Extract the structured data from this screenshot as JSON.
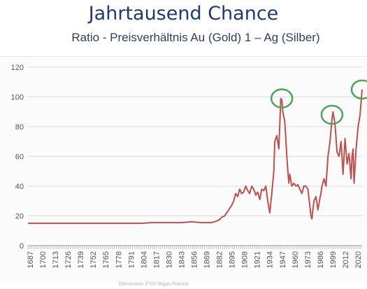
{
  "header": {
    "title": "Jahrtausend Chance",
    "subtitle": "Ratio - Preisverhältnis  Au (Gold) 1 – Ag (Silber)"
  },
  "footer": {
    "text": "Elementum 2°©© Bojan Pravica"
  },
  "chart_data": {
    "type": "line",
    "title": "Jahrtausend Chance",
    "subtitle": "Ratio - Preisverhältnis  Au (Gold) 1 – Ag (Silber)",
    "xlabel": "",
    "ylabel": "",
    "xlim": [
      1687,
      2020
    ],
    "ylim": [
      0,
      120
    ],
    "yticks": [
      0,
      20,
      40,
      60,
      80,
      100,
      120
    ],
    "xtick_labels": [
      "1687",
      "1700",
      "1713",
      "1726",
      "1739",
      "1752",
      "1765",
      "1778",
      "1791",
      "1804",
      "1817",
      "1830",
      "1843",
      "1856",
      "1869",
      "1882",
      "1895",
      "1908",
      "1921",
      "1934",
      "1947",
      "1960",
      "1973",
      "1986",
      "1999",
      "2012",
      "2020"
    ],
    "grid": true,
    "line_color": "#c0504d",
    "highlight_color": "#4aa55a",
    "series": [
      {
        "x": [
          1687,
          1695,
          1700,
          1710,
          1720,
          1730,
          1740,
          1750,
          1760,
          1770,
          1780,
          1790,
          1800,
          1810,
          1820,
          1830,
          1840,
          1850,
          1860,
          1870,
          1875,
          1878,
          1880,
          1883,
          1885,
          1887,
          1890,
          1892,
          1894,
          1896,
          1898,
          1900,
          1902,
          1904,
          1906,
          1908,
          1910,
          1912,
          1914,
          1916,
          1918,
          1920,
          1922,
          1924,
          1926,
          1928,
          1930,
          1932,
          1933,
          1935,
          1937,
          1939,
          1940,
          1941,
          1943,
          1945,
          1946,
          1947,
          1948,
          1950,
          1952,
          1954,
          1956,
          1958,
          1960,
          1962,
          1964,
          1966,
          1968,
          1969,
          1970,
          1972,
          1974,
          1976,
          1978,
          1979,
          1980,
          1982,
          1984,
          1986,
          1988,
          1990,
          1991,
          1993,
          1995,
          1997,
          1999,
          2001,
          2003,
          2005,
          2007,
          2009,
          2010,
          2011,
          2012,
          2014,
          2016,
          2018,
          2020
        ],
        "y": [
          15,
          15,
          15,
          15,
          15,
          15,
          15,
          15,
          15,
          15,
          15,
          15,
          15,
          15.5,
          15.5,
          15.5,
          15.5,
          16,
          15.5,
          15.5,
          16.5,
          17.5,
          19,
          20,
          22,
          24,
          27,
          30,
          35,
          33,
          38,
          35,
          36,
          40,
          37,
          35,
          40,
          38,
          34,
          36,
          31,
          38,
          37,
          40,
          30,
          22,
          35,
          50,
          70,
          74,
          65,
          99,
          98,
          90,
          83,
          60,
          50,
          42,
          48,
          40,
          42,
          40,
          41,
          38,
          35,
          40,
          40,
          38,
          26,
          20,
          18,
          30,
          33,
          24,
          32,
          35,
          40,
          45,
          40,
          60,
          70,
          85,
          90,
          82,
          63,
          60,
          70,
          48,
          72,
          55,
          62,
          45,
          60,
          65,
          42,
          65,
          80,
          88,
          105
        ]
      }
    ],
    "annotations": [
      {
        "type": "circle",
        "x": 1940,
        "y": 99
      },
      {
        "type": "circle",
        "x": 1990,
        "y": 88
      },
      {
        "type": "circle",
        "x": 2020,
        "y": 105
      }
    ]
  }
}
